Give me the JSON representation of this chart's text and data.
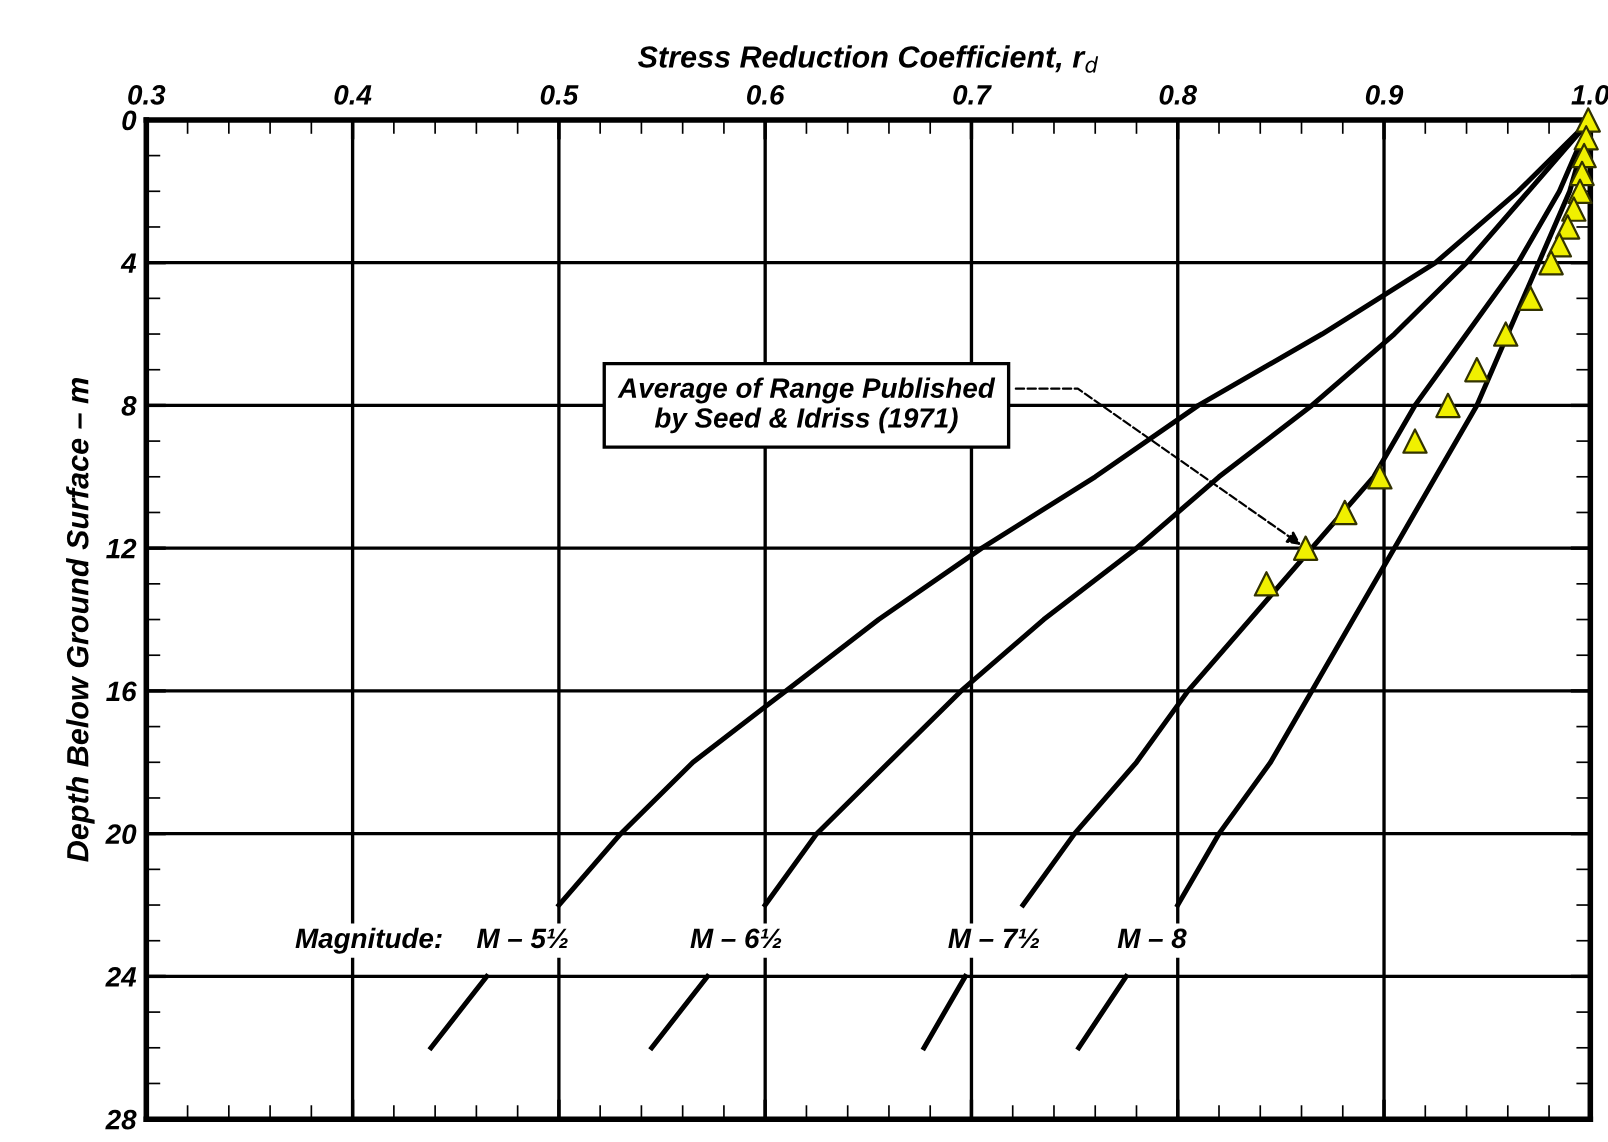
{
  "chart_data": {
    "type": "line",
    "xlabel": "Stress Reduction Coefficient, r$_{d}$",
    "ylabel": "Depth Below Ground Surface – m",
    "legend_title": "Magnitude:",
    "xlim": [
      0.3,
      1.0
    ],
    "xticks": [
      0.3,
      0.4,
      0.5,
      0.6,
      0.7,
      0.8,
      0.9,
      {
        "value": 1.0,
        "label": "1.0"
      }
    ],
    "ylim": [
      28,
      0
    ],
    "yticks": [
      0,
      4,
      8,
      12,
      16,
      20,
      24,
      28
    ],
    "grid": true,
    "legend": false,
    "line_style": "solid",
    "series": [
      {
        "name": "M – 5½",
        "color": "#000000",
        "x": [
          1.0,
          0.965,
          0.925,
          0.87,
          0.81,
          0.76,
          0.705,
          0.655,
          0.61,
          0.565,
          0.53,
          0.5,
          null,
          0.465,
          0.438
        ],
        "values": [
          0,
          2,
          4,
          6,
          8,
          10,
          12,
          14,
          16,
          18,
          20,
          22,
          null,
          24,
          26
        ]
      },
      {
        "name": "M – 6½",
        "color": "#000000",
        "x": [
          1.0,
          0.97,
          0.94,
          0.905,
          0.865,
          0.82,
          0.78,
          0.735,
          0.695,
          0.66,
          0.625,
          0.6,
          null,
          0.572,
          0.545
        ],
        "values": [
          0,
          2,
          4,
          6,
          8,
          10,
          12,
          14,
          16,
          18,
          20,
          22,
          null,
          24,
          26
        ]
      },
      {
        "name": "M – 7½",
        "color": "#000000",
        "x": [
          1.0,
          0.985,
          0.965,
          0.94,
          0.915,
          0.895,
          0.865,
          0.835,
          0.805,
          0.78,
          0.75,
          0.725,
          null,
          0.697,
          0.677
        ],
        "values": [
          0,
          2,
          4,
          6,
          8,
          10,
          12,
          14,
          16,
          18,
          20,
          22,
          null,
          24,
          26
        ]
      },
      {
        "name": "M – 8",
        "color": "#000000",
        "x": [
          1.0,
          0.99,
          0.975,
          0.96,
          0.945,
          0.925,
          0.905,
          0.885,
          0.865,
          0.845,
          0.82,
          0.8,
          null,
          0.775,
          0.752
        ],
        "values": [
          0,
          2,
          4,
          6,
          8,
          10,
          12,
          14,
          16,
          18,
          20,
          22,
          null,
          24,
          26
        ]
      },
      {
        "type": "scatter",
        "marker": "triangle",
        "color": "#f0f000",
        "x": [
          0.999,
          0.998,
          0.997,
          0.996,
          0.995,
          0.992,
          0.989,
          0.985,
          0.981,
          0.971,
          0.959,
          0.945,
          0.931,
          0.915,
          0.898,
          0.881,
          0.862,
          0.843
        ],
        "values": [
          0,
          0.5,
          1,
          1.5,
          2,
          2.5,
          3,
          3.5,
          4,
          5,
          6,
          7,
          8,
          9,
          10,
          11,
          12,
          13
        ]
      }
    ],
    "annotations": [
      {
        "text": "Average of Range Published\nby Seed & Idriss (1971)",
        "x": 0.862,
        "y": 12
      }
    ]
  }
}
